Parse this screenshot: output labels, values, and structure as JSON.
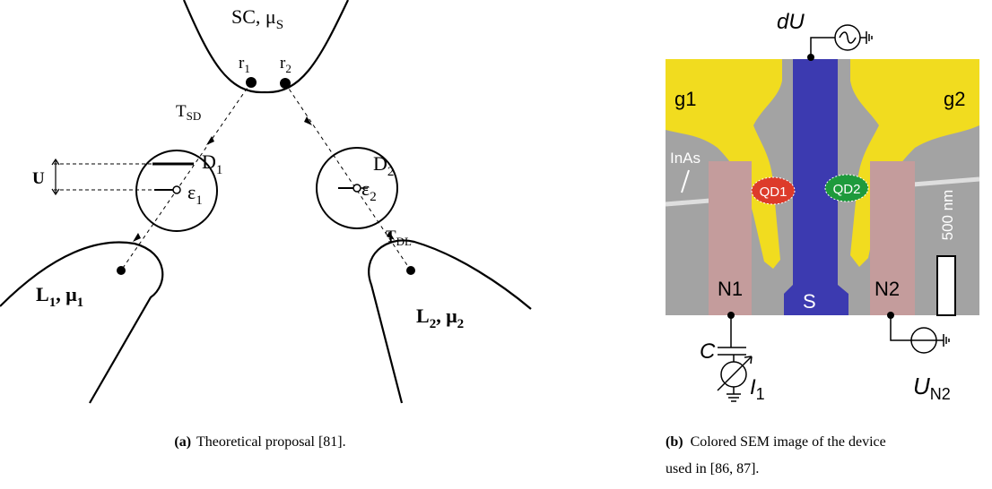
{
  "panel_a": {
    "sc": [
      "SC, μ",
      "S"
    ],
    "r1": [
      "r",
      "1"
    ],
    "r2": [
      "r",
      "2"
    ],
    "tsd": [
      "T",
      "SD"
    ],
    "u": "U",
    "d1": [
      "D",
      "1"
    ],
    "e1": [
      "ε",
      "1"
    ],
    "d2": [
      "D",
      "2"
    ],
    "e2": [
      "ε",
      "2"
    ],
    "tdl": [
      "T",
      "DL"
    ],
    "l1": [
      "L",
      "1",
      ", μ",
      "1"
    ],
    "l2": [
      "L",
      "2",
      ", μ",
      "2"
    ],
    "caption": {
      "tag": "(a)",
      "text": "Theoretical proposal [81]."
    }
  },
  "panel_b": {
    "du": "dU",
    "g1": "g1",
    "g2": "g2",
    "inas": "InAs",
    "qd1": "QD1",
    "qd2": "QD2",
    "scale": "500 nm",
    "n1": "N1",
    "s": "S",
    "n2": "N2",
    "c": "C",
    "i1": [
      "I",
      "1"
    ],
    "un2": [
      "U",
      "N2"
    ],
    "caption": {
      "tag": "(b)",
      "line1": "Colored SEM image of the device",
      "line2": "used in [86, 87]."
    }
  }
}
